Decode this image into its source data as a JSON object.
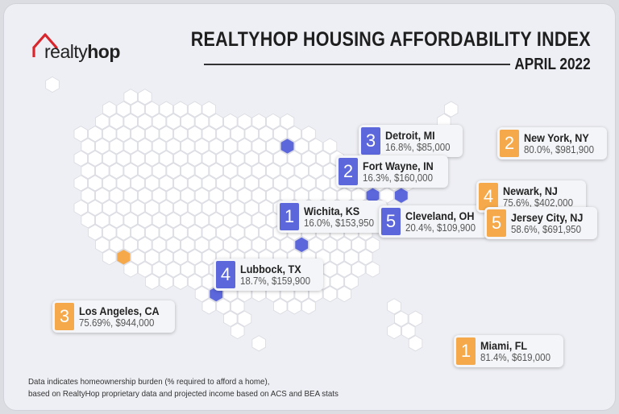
{
  "brand": {
    "logo_text_light": "realty",
    "logo_text_bold": "hop"
  },
  "header": {
    "title": "REALTYHOP HOUSING AFFORDABILITY INDEX",
    "subtitle": "APRIL 2022"
  },
  "colors": {
    "blue": "#5c67dc",
    "orange": "#f5a94a",
    "hex_fill": "#ffffff",
    "hex_stroke": "#d8d9e0"
  },
  "cities": [
    {
      "rank": "3",
      "name": "Detroit, MI",
      "stats": "16.8%, $85,000",
      "group": "most-affordable"
    },
    {
      "rank": "2",
      "name": "Fort Wayne, IN",
      "stats": "16.3%, $160,000",
      "group": "most-affordable"
    },
    {
      "rank": "1",
      "name": "Wichita, KS",
      "stats": "16.0%, $153,950",
      "group": "most-affordable"
    },
    {
      "rank": "5",
      "name": "Cleveland, OH",
      "stats": "20.4%, $109,900",
      "group": "most-affordable"
    },
    {
      "rank": "4",
      "name": "Lubbock, TX",
      "stats": "18.7%, $159,900",
      "group": "most-affordable"
    },
    {
      "rank": "2",
      "name": "New York, NY",
      "stats": "80.0%, $981,900",
      "group": "least-affordable"
    },
    {
      "rank": "4",
      "name": "Newark, NJ",
      "stats": "75.6%, $402,000",
      "group": "least-affordable"
    },
    {
      "rank": "5",
      "name": "Jersey City, NJ",
      "stats": "58.6%, $691,950",
      "group": "least-affordable"
    },
    {
      "rank": "3",
      "name": "Los Angeles, CA",
      "stats": "75.69%, $944,000",
      "group": "least-affordable"
    },
    {
      "rank": "1",
      "name": "Miami, FL",
      "stats": "81.4%, $619,000",
      "group": "least-affordable"
    }
  ],
  "footnote": {
    "line1": "Data indicates homeownership burden (% required to afford a home),",
    "line2": "based on RealtyHop proprietary data and projected income based on ACS and BEA stats"
  }
}
